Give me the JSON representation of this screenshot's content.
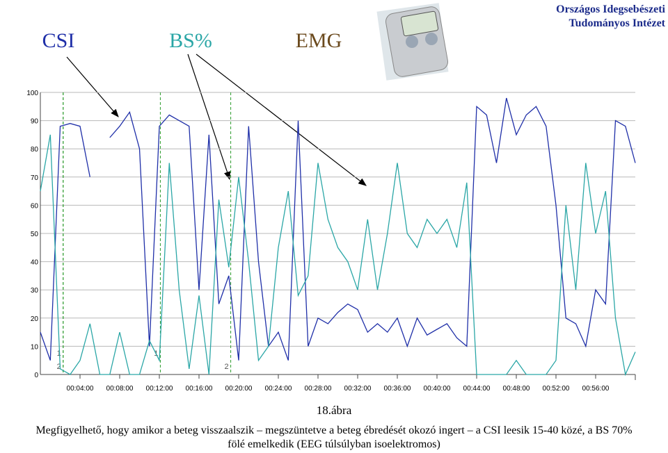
{
  "institute": [
    "Országos Idegsebészeti",
    "Tudományos Intézet"
  ],
  "chart_data": {
    "type": "line",
    "x": [
      0,
      1,
      2,
      3,
      4,
      5,
      6,
      7,
      8,
      9,
      10,
      11,
      12,
      13,
      14,
      15,
      16,
      17,
      18,
      19,
      20,
      21,
      22,
      23,
      24,
      25,
      26,
      27,
      28,
      29,
      30,
      31,
      32,
      33,
      34,
      35,
      36,
      37,
      38,
      39,
      40,
      41,
      42,
      43,
      44,
      45,
      46,
      47,
      48,
      49,
      50,
      51,
      52,
      53,
      54,
      55,
      56,
      57,
      58,
      59,
      60
    ],
    "series": [
      {
        "name": "CSI",
        "color": "#1f2fa8",
        "values": [
          15,
          5,
          88,
          89,
          88,
          70,
          null,
          84,
          88,
          93,
          80,
          10,
          88,
          92,
          90,
          88,
          30,
          85,
          25,
          35,
          5,
          88,
          40,
          10,
          15,
          5,
          90,
          10,
          20,
          18,
          22,
          25,
          23,
          15,
          18,
          15,
          20,
          10,
          20,
          14,
          16,
          18,
          13,
          10,
          95,
          92,
          75,
          98,
          85,
          92,
          95,
          88,
          60,
          20,
          18,
          10,
          30,
          25,
          90,
          88,
          75
        ]
      },
      {
        "name": "BS%",
        "color": "#2aa6a6",
        "values": [
          65,
          85,
          2,
          0,
          5,
          18,
          0,
          0,
          15,
          0,
          0,
          12,
          5,
          75,
          30,
          2,
          28,
          0,
          62,
          38,
          70,
          40,
          5,
          10,
          45,
          65,
          28,
          35,
          75,
          55,
          45,
          40,
          30,
          55,
          30,
          50,
          75,
          50,
          45,
          55,
          50,
          55,
          45,
          68,
          0,
          0,
          0,
          0,
          5,
          0,
          0,
          0,
          5,
          60,
          30,
          75,
          50,
          65,
          20,
          0,
          8
        ]
      }
    ],
    "annotations": [
      {
        "text": "EMG",
        "color": "#6b4a1e"
      }
    ],
    "events": [
      {
        "x": 2.3,
        "label": "1"
      },
      {
        "x": 2.3,
        "label": "2"
      },
      {
        "x": 12.1,
        "label": "1"
      },
      {
        "x": 19.2,
        "label": "2"
      }
    ],
    "xlim": [
      0,
      60
    ],
    "ylim": [
      0,
      100
    ],
    "yticks": [
      0,
      10,
      20,
      30,
      40,
      50,
      60,
      70,
      80,
      90,
      100
    ],
    "xticks": [
      {
        "value": 4,
        "label": "00:04:00"
      },
      {
        "value": 8,
        "label": "00:08:00"
      },
      {
        "value": 12,
        "label": "00:12:00"
      },
      {
        "value": 16,
        "label": "00:16:00"
      },
      {
        "value": 20,
        "label": "00:20:00"
      },
      {
        "value": 24,
        "label": "00:24:00"
      },
      {
        "value": 28,
        "label": "00:28:00"
      },
      {
        "value": 32,
        "label": "00:32:00"
      },
      {
        "value": 36,
        "label": "00:36:00"
      },
      {
        "value": 40,
        "label": "00:40:00"
      },
      {
        "value": 44,
        "label": "00:44:00"
      },
      {
        "value": 48,
        "label": "00:48:00"
      },
      {
        "value": 52,
        "label": "00:52:00"
      },
      {
        "value": 56,
        "label": "00:56:00"
      }
    ],
    "grid": true
  },
  "figure_label": "18.ábra",
  "caption": [
    "Megfigyelhető, hogy amikor a beteg visszaalszik – megszüntetve a beteg ébredését okozó ingert – a CSI leesik 15-40 közé, a BS 70% ",
    "fölé emelkedik (EEG túlsúlyban isoelektromos)"
  ]
}
